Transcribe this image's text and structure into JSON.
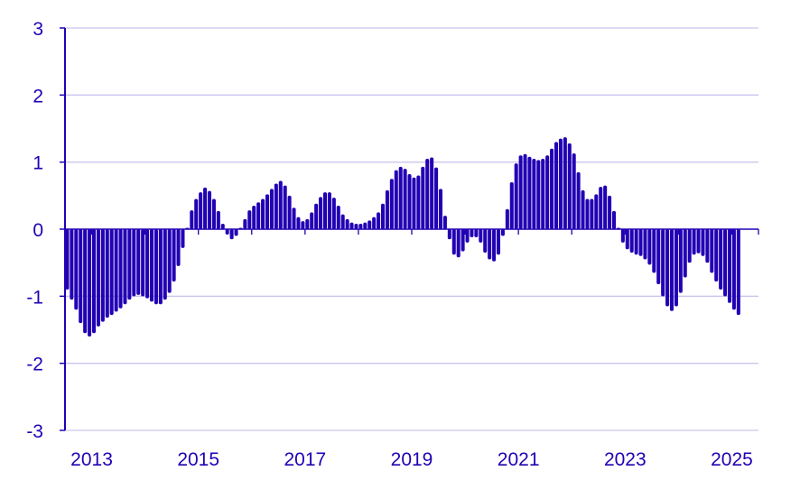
{
  "colors": {
    "bar": "#2200b4",
    "axis": "#2200b4",
    "grid": "#c9c6ee",
    "text": "#2200b4"
  },
  "chart_data": {
    "type": "bar",
    "title": "",
    "xlabel": "",
    "ylabel": "",
    "ylim": [
      -3,
      3
    ],
    "xlim": [
      2012.5,
      2025.5
    ],
    "grid": true,
    "legend": "none",
    "y_ticks": [
      {
        "value": 3,
        "label": "3"
      },
      {
        "value": 2,
        "label": "2"
      },
      {
        "value": 1,
        "label": "1"
      },
      {
        "value": 0,
        "label": "0"
      },
      {
        "value": -1,
        "label": "-1"
      },
      {
        "value": -2,
        "label": "-2"
      },
      {
        "value": -3,
        "label": "-3"
      }
    ],
    "x_ticks": [
      {
        "value": 2013,
        "label": "2013"
      },
      {
        "value": 2015,
        "label": "2015"
      },
      {
        "value": 2017,
        "label": "2017"
      },
      {
        "value": 2019,
        "label": "2019"
      },
      {
        "value": 2021,
        "label": "2021"
      },
      {
        "value": 2023,
        "label": "2023"
      },
      {
        "value": 2025,
        "label": "2025"
      }
    ],
    "x_minor_ticks": [
      2014,
      2016,
      2018,
      2020,
      2022,
      2024
    ],
    "series": [
      {
        "points": [
          {
            "x": "2012-07",
            "y": -0.9
          },
          {
            "x": "2012-08",
            "y": -1.05
          },
          {
            "x": "2012-09",
            "y": -1.2
          },
          {
            "x": "2012-10",
            "y": -1.4
          },
          {
            "x": "2012-11",
            "y": -1.55
          },
          {
            "x": "2012-12",
            "y": -1.6
          },
          {
            "x": "2013-01",
            "y": -1.55
          },
          {
            "x": "2013-02",
            "y": -1.45
          },
          {
            "x": "2013-03",
            "y": -1.38
          },
          {
            "x": "2013-04",
            "y": -1.32
          },
          {
            "x": "2013-05",
            "y": -1.28
          },
          {
            "x": "2013-06",
            "y": -1.23
          },
          {
            "x": "2013-07",
            "y": -1.18
          },
          {
            "x": "2013-08",
            "y": -1.12
          },
          {
            "x": "2013-09",
            "y": -1.05
          },
          {
            "x": "2013-10",
            "y": -1.0
          },
          {
            "x": "2013-11",
            "y": -0.98
          },
          {
            "x": "2013-12",
            "y": -1.0
          },
          {
            "x": "2014-01",
            "y": -1.03
          },
          {
            "x": "2014-02",
            "y": -1.08
          },
          {
            "x": "2014-03",
            "y": -1.12
          },
          {
            "x": "2014-04",
            "y": -1.12
          },
          {
            "x": "2014-05",
            "y": -1.05
          },
          {
            "x": "2014-06",
            "y": -0.95
          },
          {
            "x": "2014-07",
            "y": -0.78
          },
          {
            "x": "2014-08",
            "y": -0.55
          },
          {
            "x": "2014-09",
            "y": -0.28
          },
          {
            "x": "2014-10",
            "y": 0.02
          },
          {
            "x": "2014-11",
            "y": 0.28
          },
          {
            "x": "2014-12",
            "y": 0.45
          },
          {
            "x": "2015-01",
            "y": 0.55
          },
          {
            "x": "2015-02",
            "y": 0.62
          },
          {
            "x": "2015-03",
            "y": 0.57
          },
          {
            "x": "2015-04",
            "y": 0.45
          },
          {
            "x": "2015-05",
            "y": 0.27
          },
          {
            "x": "2015-06",
            "y": 0.08
          },
          {
            "x": "2015-07",
            "y": -0.08
          },
          {
            "x": "2015-08",
            "y": -0.15
          },
          {
            "x": "2015-09",
            "y": -0.1
          },
          {
            "x": "2015-10",
            "y": 0.02
          },
          {
            "x": "2015-11",
            "y": 0.15
          },
          {
            "x": "2015-12",
            "y": 0.28
          },
          {
            "x": "2016-01",
            "y": 0.35
          },
          {
            "x": "2016-02",
            "y": 0.4
          },
          {
            "x": "2016-03",
            "y": 0.45
          },
          {
            "x": "2016-04",
            "y": 0.52
          },
          {
            "x": "2016-05",
            "y": 0.6
          },
          {
            "x": "2016-06",
            "y": 0.68
          },
          {
            "x": "2016-07",
            "y": 0.72
          },
          {
            "x": "2016-08",
            "y": 0.65
          },
          {
            "x": "2016-09",
            "y": 0.5
          },
          {
            "x": "2016-10",
            "y": 0.32
          },
          {
            "x": "2016-11",
            "y": 0.18
          },
          {
            "x": "2016-12",
            "y": 0.12
          },
          {
            "x": "2017-01",
            "y": 0.15
          },
          {
            "x": "2017-02",
            "y": 0.25
          },
          {
            "x": "2017-03",
            "y": 0.38
          },
          {
            "x": "2017-04",
            "y": 0.48
          },
          {
            "x": "2017-05",
            "y": 0.55
          },
          {
            "x": "2017-06",
            "y": 0.55
          },
          {
            "x": "2017-07",
            "y": 0.47
          },
          {
            "x": "2017-08",
            "y": 0.35
          },
          {
            "x": "2017-09",
            "y": 0.22
          },
          {
            "x": "2017-10",
            "y": 0.15
          },
          {
            "x": "2017-11",
            "y": 0.1
          },
          {
            "x": "2017-12",
            "y": 0.08
          },
          {
            "x": "2018-01",
            "y": 0.08
          },
          {
            "x": "2018-02",
            "y": 0.1
          },
          {
            "x": "2018-03",
            "y": 0.13
          },
          {
            "x": "2018-04",
            "y": 0.18
          },
          {
            "x": "2018-05",
            "y": 0.25
          },
          {
            "x": "2018-06",
            "y": 0.38
          },
          {
            "x": "2018-07",
            "y": 0.58
          },
          {
            "x": "2018-08",
            "y": 0.75
          },
          {
            "x": "2018-09",
            "y": 0.88
          },
          {
            "x": "2018-10",
            "y": 0.93
          },
          {
            "x": "2018-11",
            "y": 0.9
          },
          {
            "x": "2018-12",
            "y": 0.82
          },
          {
            "x": "2019-01",
            "y": 0.77
          },
          {
            "x": "2019-02",
            "y": 0.8
          },
          {
            "x": "2019-03",
            "y": 0.93
          },
          {
            "x": "2019-04",
            "y": 1.05
          },
          {
            "x": "2019-05",
            "y": 1.07
          },
          {
            "x": "2019-06",
            "y": 0.92
          },
          {
            "x": "2019-07",
            "y": 0.6
          },
          {
            "x": "2019-08",
            "y": 0.2
          },
          {
            "x": "2019-09",
            "y": -0.15
          },
          {
            "x": "2019-10",
            "y": -0.38
          },
          {
            "x": "2019-11",
            "y": -0.42
          },
          {
            "x": "2019-12",
            "y": -0.33
          },
          {
            "x": "2020-01",
            "y": -0.2
          },
          {
            "x": "2020-02",
            "y": -0.12
          },
          {
            "x": "2020-03",
            "y": -0.12
          },
          {
            "x": "2020-04",
            "y": -0.2
          },
          {
            "x": "2020-05",
            "y": -0.35
          },
          {
            "x": "2020-06",
            "y": -0.45
          },
          {
            "x": "2020-07",
            "y": -0.48
          },
          {
            "x": "2020-08",
            "y": -0.38
          },
          {
            "x": "2020-09",
            "y": -0.1
          },
          {
            "x": "2020-10",
            "y": 0.3
          },
          {
            "x": "2020-11",
            "y": 0.7
          },
          {
            "x": "2020-12",
            "y": 0.98
          },
          {
            "x": "2021-01",
            "y": 1.1
          },
          {
            "x": "2021-02",
            "y": 1.12
          },
          {
            "x": "2021-03",
            "y": 1.08
          },
          {
            "x": "2021-04",
            "y": 1.05
          },
          {
            "x": "2021-05",
            "y": 1.03
          },
          {
            "x": "2021-06",
            "y": 1.05
          },
          {
            "x": "2021-07",
            "y": 1.1
          },
          {
            "x": "2021-08",
            "y": 1.2
          },
          {
            "x": "2021-09",
            "y": 1.3
          },
          {
            "x": "2021-10",
            "y": 1.35
          },
          {
            "x": "2021-11",
            "y": 1.37
          },
          {
            "x": "2021-12",
            "y": 1.28
          },
          {
            "x": "2022-01",
            "y": 1.13
          },
          {
            "x": "2022-02",
            "y": 0.85
          },
          {
            "x": "2022-03",
            "y": 0.58
          },
          {
            "x": "2022-04",
            "y": 0.45
          },
          {
            "x": "2022-05",
            "y": 0.45
          },
          {
            "x": "2022-06",
            "y": 0.52
          },
          {
            "x": "2022-07",
            "y": 0.63
          },
          {
            "x": "2022-08",
            "y": 0.65
          },
          {
            "x": "2022-09",
            "y": 0.5
          },
          {
            "x": "2022-10",
            "y": 0.27
          },
          {
            "x": "2022-11",
            "y": 0.02
          },
          {
            "x": "2022-12",
            "y": -0.2
          },
          {
            "x": "2023-01",
            "y": -0.3
          },
          {
            "x": "2023-02",
            "y": -0.35
          },
          {
            "x": "2023-03",
            "y": -0.38
          },
          {
            "x": "2023-04",
            "y": -0.4
          },
          {
            "x": "2023-05",
            "y": -0.45
          },
          {
            "x": "2023-06",
            "y": -0.53
          },
          {
            "x": "2023-07",
            "y": -0.65
          },
          {
            "x": "2023-08",
            "y": -0.82
          },
          {
            "x": "2023-09",
            "y": -1.0
          },
          {
            "x": "2023-10",
            "y": -1.15
          },
          {
            "x": "2023-11",
            "y": -1.22
          },
          {
            "x": "2023-12",
            "y": -1.15
          },
          {
            "x": "2024-01",
            "y": -0.95
          },
          {
            "x": "2024-02",
            "y": -0.72
          },
          {
            "x": "2024-03",
            "y": -0.5
          },
          {
            "x": "2024-04",
            "y": -0.38
          },
          {
            "x": "2024-05",
            "y": -0.36
          },
          {
            "x": "2024-06",
            "y": -0.4
          },
          {
            "x": "2024-07",
            "y": -0.5
          },
          {
            "x": "2024-08",
            "y": -0.65
          },
          {
            "x": "2024-09",
            "y": -0.78
          },
          {
            "x": "2024-10",
            "y": -0.9
          },
          {
            "x": "2024-11",
            "y": -1.0
          },
          {
            "x": "2024-12",
            "y": -1.1
          },
          {
            "x": "2025-01",
            "y": -1.2
          },
          {
            "x": "2025-02",
            "y": -1.28
          }
        ]
      }
    ]
  }
}
